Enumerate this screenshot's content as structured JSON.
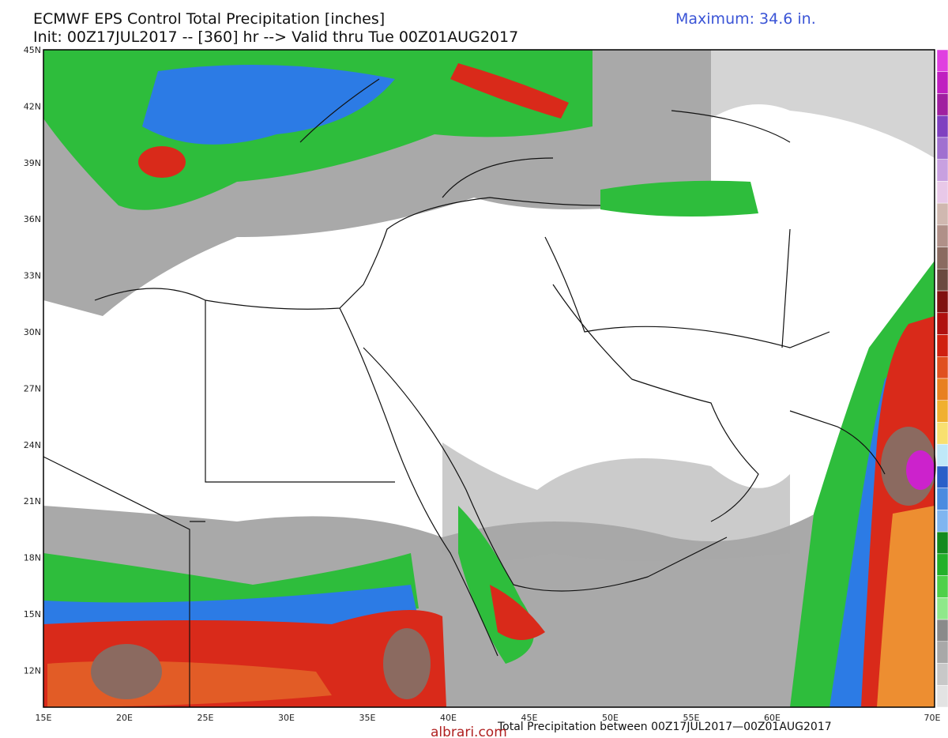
{
  "header": {
    "title": "ECMWF EPS Control Total Precipitation [inches]",
    "init": "Init: 00Z17JUL2017 -- [360] hr --> Valid thru Tue 00Z01AUG2017",
    "maximum": "Maximum: 34.6 in."
  },
  "map": {
    "lat_labels": [
      "45N",
      "42N",
      "39N",
      "36N",
      "33N",
      "30N",
      "27N",
      "24N",
      "21N",
      "18N",
      "15N",
      "12N"
    ],
    "lon_labels": [
      "15E",
      "20E",
      "25E",
      "30E",
      "35E",
      "40E",
      "45E",
      "50E",
      "55E",
      "60E",
      "70E"
    ],
    "caption": "Total Precipitation between 00Z17JUL2017—00Z01AUG2017"
  },
  "watermark": "albrari.com"
}
